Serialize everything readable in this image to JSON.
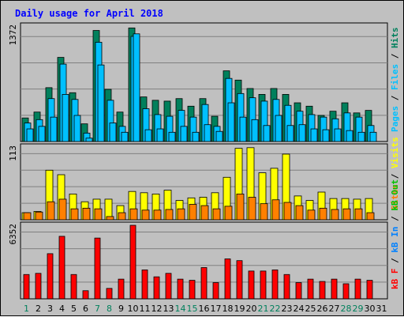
{
  "chart_data": {
    "type": "bar",
    "title": "Daily usage for April 2018",
    "categories": [
      "1",
      "2",
      "3",
      "4",
      "5",
      "6",
      "7",
      "8",
      "9",
      "10",
      "11",
      "12",
      "13",
      "14",
      "15",
      "16",
      "17",
      "18",
      "19",
      "20",
      "21",
      "22",
      "23",
      "24",
      "25",
      "26",
      "27",
      "28",
      "29",
      "30",
      "31"
    ],
    "weekend_days": [
      1,
      7,
      8,
      14,
      15,
      21,
      22,
      28,
      29
    ],
    "colors": {
      "title": "#0000ff",
      "hits": "#00805c",
      "files": "#00c0ff",
      "pages": "#00c0ff",
      "visits": "#ffff00",
      "sites": "#ff8000",
      "kbin": "#0080ff",
      "kbout": "#00c000",
      "kbf": "#ff0000",
      "weekday_label": "#000000",
      "weekend_label": "#00805c",
      "slash": "#000000",
      "grid": "#808080",
      "panel": "#c0c0c0"
    },
    "panels": [
      {
        "id": "requests",
        "ymax_label": "1372",
        "ymax": 1372,
        "legend": [
          {
            "key": "pages",
            "label": "Pages"
          },
          {
            "key": "files",
            "label": "Files"
          },
          {
            "key": "hits",
            "label": "Hits"
          }
        ],
        "series": [
          {
            "name": "Hits",
            "values": [
              280,
              350,
              640,
              1000,
              580,
              210,
              1320,
              620,
              350,
              1350,
              530,
              490,
              480,
              510,
              420,
              510,
              300,
              840,
              730,
              630,
              560,
              630,
              560,
              460,
              420,
              310,
              360,
              460,
              340,
              370,
              0
            ]
          },
          {
            "name": "Files",
            "values": [
              220,
              260,
              510,
              920,
              500,
              100,
              1180,
              490,
              180,
              1250,
              390,
              320,
              300,
              370,
              290,
              440,
              180,
              750,
              570,
              520,
              480,
              500,
              430,
              360,
              320,
              290,
              270,
              340,
              290,
              190,
              0
            ]
          },
          {
            "name": "Pages",
            "values": [
              150,
              180,
              290,
              560,
              310,
              40,
              910,
              220,
              110,
              1280,
              140,
              150,
              110,
              180,
              110,
              200,
              120,
              460,
              290,
              260,
              190,
              310,
              190,
              200,
              150,
              140,
              150,
              130,
              110,
              110,
              0
            ]
          }
        ]
      },
      {
        "id": "visits",
        "ymax_label": "113",
        "ymax": 113,
        "legend": [
          {
            "key": "sites",
            "label": "Sites"
          },
          {
            "key": "visits",
            "label": "Visits"
          }
        ],
        "series": [
          {
            "name": "Visits",
            "values": [
              11,
              13,
              77,
              70,
              40,
              28,
              32,
              32,
              22,
              44,
              42,
              40,
              46,
              30,
              34,
              35,
              42,
              66,
              111,
              112,
              73,
              80,
              102,
              37,
              30,
              43,
              33,
              33,
              32,
              33,
              0
            ]
          },
          {
            "name": "Sites",
            "values": [
              11,
              12,
              28,
              32,
              17,
              18,
              17,
              5,
              11,
              17,
              15,
              15,
              16,
              17,
              24,
              22,
              17,
              21,
              40,
              35,
              25,
              31,
              27,
              22,
              15,
              18,
              16,
              17,
              17,
              11,
              0
            ]
          }
        ]
      },
      {
        "id": "kbytes",
        "ymax_label": "6352",
        "ymax": 6352,
        "legend": [
          {
            "key": "kbf",
            "label": "kB F"
          },
          {
            "key": "kbin",
            "label": "kB In"
          },
          {
            "key": "kbout",
            "label": "kB Out"
          }
        ],
        "series": [
          {
            "name": "kB F",
            "values": [
              2100,
              2200,
              3900,
              5400,
              2100,
              700,
              5250,
              900,
              1700,
              6352,
              2500,
              1900,
              2200,
              1700,
              1600,
              2700,
              1400,
              3450,
              3300,
              2400,
              2400,
              2500,
              2100,
              1400,
              1700,
              1500,
              1700,
              1300,
              1700,
              1600,
              0
            ]
          }
        ]
      }
    ]
  }
}
